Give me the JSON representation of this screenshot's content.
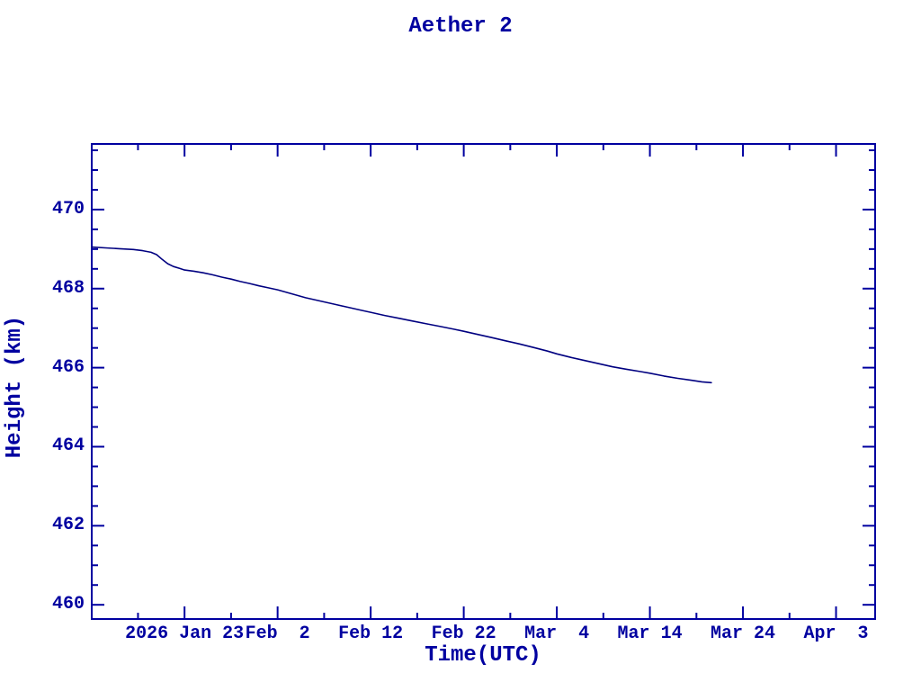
{
  "colors": {
    "ink": "#0000A0",
    "line": "#000080",
    "background": "#FFFFFF"
  },
  "chart_data": {
    "type": "line",
    "title": "Aether 2",
    "xlabel": "Time(UTC)",
    "ylabel": "Height (km)",
    "x_unit": "days relative to 2026 Jan 23 00:00 UTC",
    "xlim": [
      -9.97,
      74.2
    ],
    "ylim": [
      459.64,
      471.66
    ],
    "grid": false,
    "legend": "none",
    "x_major_ticks": [
      {
        "d": 0,
        "label": "2026 Jan 23"
      },
      {
        "d": 10,
        "label": "Feb  2"
      },
      {
        "d": 20,
        "label": "Feb 12"
      },
      {
        "d": 30,
        "label": "Feb 22"
      },
      {
        "d": 40,
        "label": "Mar  4"
      },
      {
        "d": 50,
        "label": "Mar 14"
      },
      {
        "d": 60,
        "label": "Mar 24"
      },
      {
        "d": 70,
        "label": "Apr  3"
      }
    ],
    "x_minor_step": 5,
    "y_major_ticks": [
      460,
      462,
      464,
      466,
      468,
      470
    ],
    "y_major_step": 2,
    "y_minor_step": 0.5,
    "series": [
      {
        "name": "height",
        "points": [
          [
            -9.95,
            469.05
          ],
          [
            -8.5,
            469.03
          ],
          [
            -7.0,
            469.01
          ],
          [
            -5.5,
            468.99
          ],
          [
            -4.5,
            468.96
          ],
          [
            -3.6,
            468.92
          ],
          [
            -3.0,
            468.86
          ],
          [
            -2.4,
            468.74
          ],
          [
            -1.8,
            468.63
          ],
          [
            -1.2,
            468.56
          ],
          [
            -0.5,
            468.51
          ],
          [
            0.0,
            468.47
          ],
          [
            1.0,
            468.44
          ],
          [
            2.0,
            468.4
          ],
          [
            3.0,
            468.35
          ],
          [
            4.0,
            468.29
          ],
          [
            5.0,
            468.24
          ],
          [
            6.0,
            468.18
          ],
          [
            7.0,
            468.13
          ],
          [
            8.0,
            468.07
          ],
          [
            9.0,
            468.02
          ],
          [
            10.0,
            467.97
          ],
          [
            11.5,
            467.87
          ],
          [
            13.0,
            467.77
          ],
          [
            14.5,
            467.69
          ],
          [
            16.0,
            467.61
          ],
          [
            17.5,
            467.53
          ],
          [
            19.0,
            467.45
          ],
          [
            20.0,
            467.4
          ],
          [
            21.5,
            467.32
          ],
          [
            23.0,
            467.25
          ],
          [
            24.5,
            467.18
          ],
          [
            26.0,
            467.11
          ],
          [
            27.5,
            467.04
          ],
          [
            29.0,
            466.97
          ],
          [
            30.0,
            466.92
          ],
          [
            31.5,
            466.84
          ],
          [
            33.0,
            466.76
          ],
          [
            34.5,
            466.68
          ],
          [
            36.0,
            466.6
          ],
          [
            37.5,
            466.51
          ],
          [
            39.0,
            466.42
          ],
          [
            40.0,
            466.35
          ],
          [
            41.5,
            466.26
          ],
          [
            43.0,
            466.18
          ],
          [
            44.5,
            466.1
          ],
          [
            46.0,
            466.02
          ],
          [
            47.5,
            465.96
          ],
          [
            49.0,
            465.9
          ],
          [
            50.0,
            465.86
          ],
          [
            51.5,
            465.79
          ],
          [
            53.0,
            465.73
          ],
          [
            54.5,
            465.68
          ],
          [
            55.6,
            465.64
          ],
          [
            56.6,
            465.62
          ]
        ]
      }
    ]
  }
}
